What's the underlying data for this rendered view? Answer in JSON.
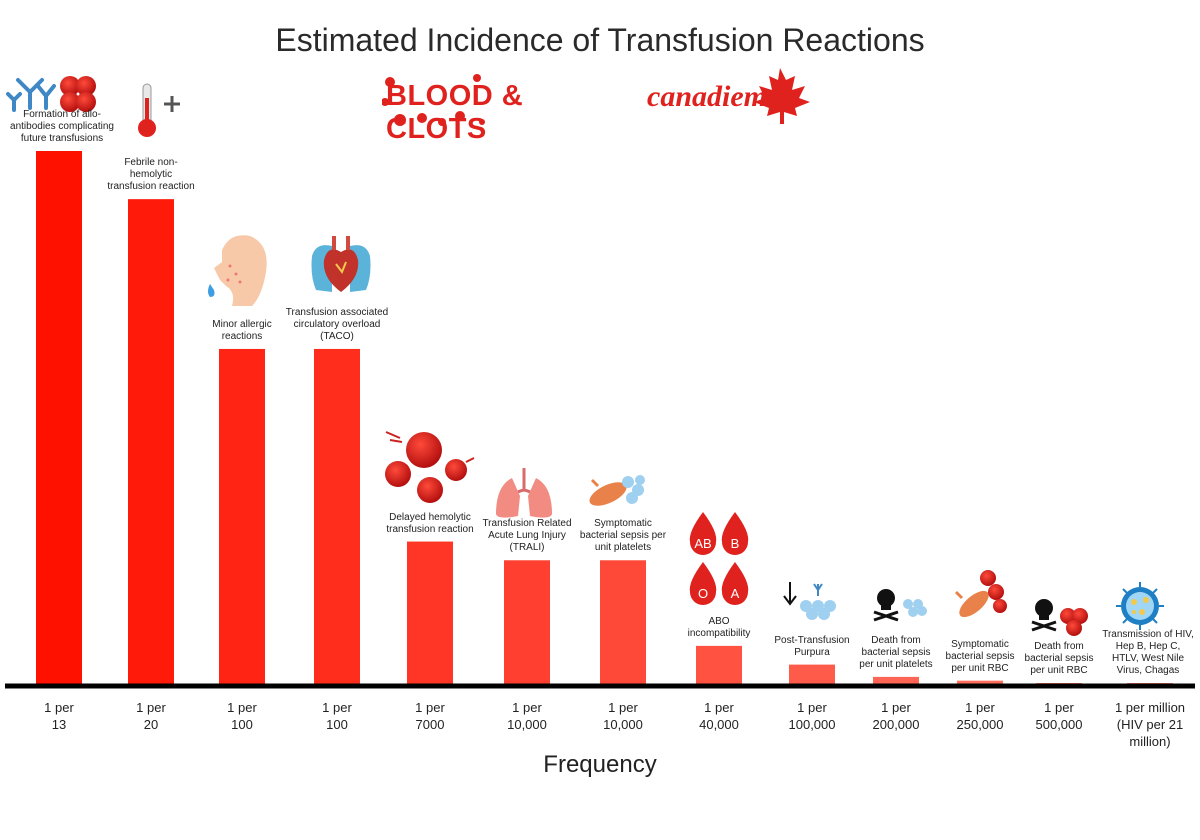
{
  "chart_data": {
    "type": "bar",
    "title": "Estimated Incidence of Transfusion Reactions",
    "xlabel": "Frequency",
    "ylabel": "",
    "categories": [
      "Formation of allo-antibodies complicating future transfusions",
      "Febrile non-hemolytic transfusion reaction",
      "Minor allergic reactions",
      "Transfusion associated circulatory overload (TACO)",
      "Delayed hemolytic transfusion reaction",
      "Transfusion Related Acute Lung Injury (TRALI)",
      "Symptomatic bacterial sepsis per unit platelets",
      "ABO incompatibility",
      "Post-Transfusion Purpura",
      "Death from bacterial sepsis per unit platelets",
      "Symptomatic bacterial sepsis per unit RBC",
      "Death from bacterial sepsis per unit RBC",
      "Transmission of HIV, Hep B, Hep C, HTLV, West Nile Virus, Chagas"
    ],
    "labels": [
      "Formation of allo-\nantibodies complicating\nfuture transfusions",
      "Febrile non-\nhemolytic\ntransfusion reaction",
      "Minor allergic\nreactions",
      "Transfusion associated\ncirculatory overload\n(TACO)",
      "Delayed hemolytic\ntransfusion reaction",
      "Transfusion Related\nAcute Lung Injury\n(TRALI)",
      "Symptomatic\nbacterial sepsis per\nunit platelets",
      "ABO\nincompatibility",
      "Post-Transfusion\nPurpura",
      "Death from\nbacterial sepsis\nper unit platelets",
      "Symptomatic\nbacterial sepsis\nper unit RBC",
      "Death from\nbacterial sepsis\nper unit RBC",
      "Transmission of HIV,\nHep B, Hep C,\nHTLV, West Nile\nVirus, Chagas"
    ],
    "tick_labels": [
      "1 per\n13",
      "1 per\n20",
      "1 per\n100",
      "1 per\n100",
      "1 per\n7000",
      "1 per\n10,000",
      "1 per\n10,000",
      "1 per\n40,000",
      "1 per\n100,000",
      "1 per\n200,000",
      "1 per\n250,000",
      "1 per\n500,000",
      "1 per million\n(HIV per 21\nmillion)"
    ],
    "values": [
      100,
      91,
      63,
      63,
      27,
      23.5,
      23.5,
      7.5,
      4,
      1.7,
      1,
      0.5,
      0.2
    ],
    "value_scale": "relative visual bar height (axis unlabeled)",
    "ylim": [
      0,
      100
    ],
    "grid": false,
    "legend": "none"
  },
  "logos": {
    "blood_clots": "BLOOD & CLOTS",
    "canadiem": "canadiem"
  },
  "abo_types": [
    "AB",
    "B",
    "O",
    "A"
  ],
  "colors": {
    "bar_start": "#ff1100",
    "bar_end": "#ff8070",
    "axis": "#000000",
    "brand_red": "#e0221f"
  }
}
